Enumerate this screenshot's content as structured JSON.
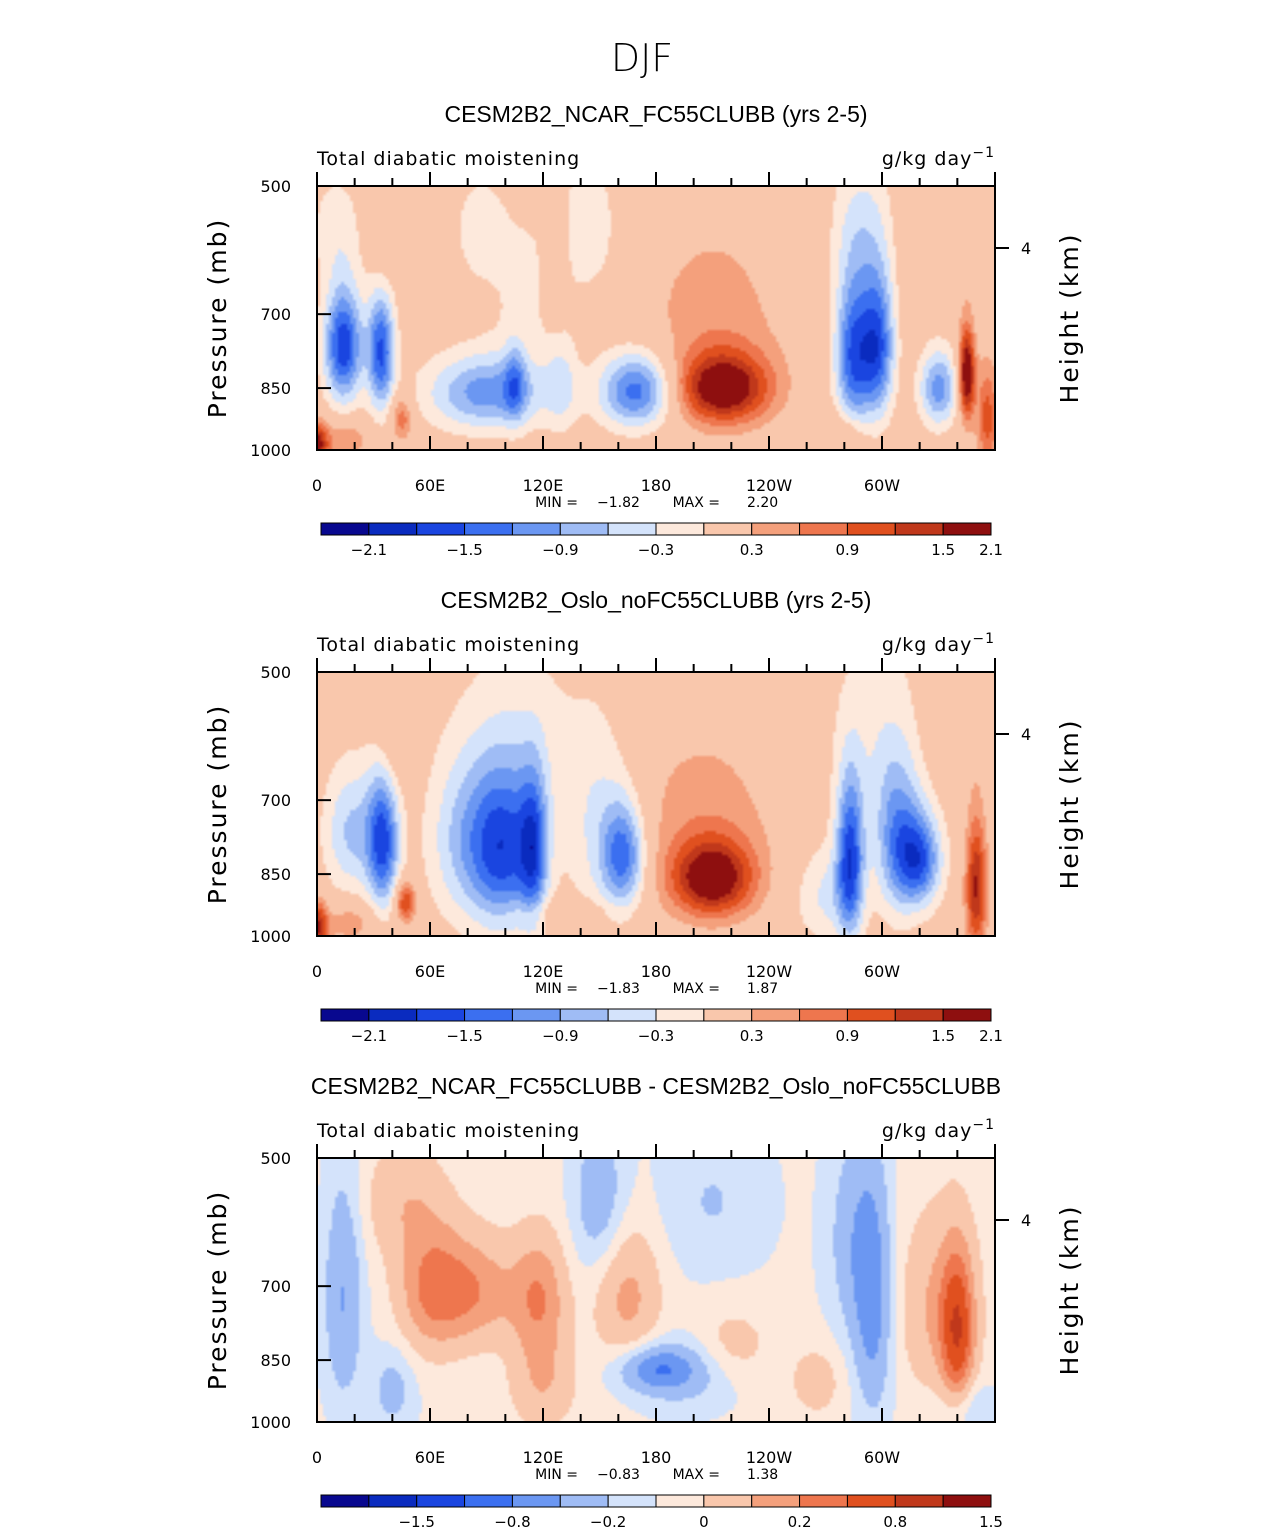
{
  "title": "DJF",
  "palette": [
    "#08088f",
    "#0a2bbf",
    "#1a45e0",
    "#3b6ff0",
    "#6b97f2",
    "#9fbcf5",
    "#d4e3fb",
    "#fde9dc",
    "#f9c7ac",
    "#f4a07c",
    "#ee764e",
    "#e0501f",
    "#c0381b",
    "#8e0f0f"
  ],
  "chart_data": [
    {
      "type": "heatmap",
      "title": "CESM2B2_NCAR_FC55CLUBB (yrs 2-5)",
      "variable_label": "Total diabatic moistening",
      "units_base": "g/kg day",
      "units_exp": "−1",
      "ylabel": "Pressure (mb)",
      "ylabel_right": "Height (km)",
      "yticks": [
        "500",
        "700",
        "850",
        "1000"
      ],
      "yticks_right": [
        "4"
      ],
      "xticks": [
        "0",
        "60E",
        "120E",
        "180",
        "120W",
        "60W"
      ],
      "xlim": [
        0,
        360
      ],
      "ylim": [
        1000,
        500
      ],
      "min_label": "MIN =",
      "min_value": "−1.82",
      "max_label": "MAX =",
      "max_value": "2.20",
      "colorbar_levels": [
        "−2.1",
        "−1.5",
        "−0.9",
        "−0.3",
        "0.3",
        "0.9",
        "1.5",
        "2.1"
      ],
      "features": [
        {
          "lon": 14,
          "p": 760,
          "amp": -2.0,
          "wlon": 7,
          "wp": 80
        },
        {
          "lon": 34,
          "p": 770,
          "amp": -1.8,
          "wlon": 5,
          "wp": 85
        },
        {
          "lon": 10,
          "p": 560,
          "amp": -0.4,
          "wlon": 10,
          "wp": 60
        },
        {
          "lon": 0,
          "p": 985,
          "amp": 1.7,
          "wlon": 4,
          "wp": 40
        },
        {
          "lon": 15,
          "p": 975,
          "amp": 0.7,
          "wlon": 8,
          "wp": 35
        },
        {
          "lon": 45,
          "p": 920,
          "amp": 0.9,
          "wlon": 4,
          "wp": 40
        },
        {
          "lon": 35,
          "p": 560,
          "amp": 0.4,
          "wlon": 5,
          "wp": 70
        },
        {
          "lon": 90,
          "p": 860,
          "amp": -1.3,
          "wlon": 22,
          "wp": 60
        },
        {
          "lon": 105,
          "p": 840,
          "amp": -0.8,
          "wlon": 4,
          "wp": 60
        },
        {
          "lon": 130,
          "p": 840,
          "amp": -0.5,
          "wlon": 6,
          "wp": 80
        },
        {
          "lon": 110,
          "p": 650,
          "amp": -0.3,
          "wlon": 15,
          "wp": 120
        },
        {
          "lon": 170,
          "p": 855,
          "amp": -1.7,
          "wlon": 14,
          "wp": 60
        },
        {
          "lon": 145,
          "p": 560,
          "amp": -0.45,
          "wlon": 12,
          "wp": 80
        },
        {
          "lon": 127,
          "p": 620,
          "amp": 0.45,
          "wlon": 4,
          "wp": 70
        },
        {
          "lon": 85,
          "p": 560,
          "amp": -0.35,
          "wlon": 10,
          "wp": 60
        },
        {
          "lon": 216,
          "p": 850,
          "amp": 1.8,
          "wlon": 17,
          "wp": 55
        },
        {
          "lon": 210,
          "p": 720,
          "amp": 0.5,
          "wlon": 30,
          "wp": 150
        },
        {
          "lon": 285,
          "p": 780,
          "amp": -1.8,
          "wlon": 7,
          "wp": 110
        },
        {
          "lon": 298,
          "p": 760,
          "amp": -1.7,
          "wlon": 6,
          "wp": 100
        },
        {
          "lon": 290,
          "p": 560,
          "amp": -0.6,
          "wlon": 12,
          "wp": 80
        },
        {
          "lon": 330,
          "p": 850,
          "amp": -1.3,
          "wlon": 7,
          "wp": 60
        },
        {
          "lon": 345,
          "p": 820,
          "amp": 2.1,
          "wlon": 3,
          "wp": 70
        },
        {
          "lon": 356,
          "p": 920,
          "amp": 1.1,
          "wlon": 4,
          "wp": 90
        },
        {
          "lon": 280,
          "p": 960,
          "amp": 0.5,
          "wlon": 8,
          "wp": 40
        },
        {
          "lon": 335,
          "p": 560,
          "amp": 0.3,
          "wlon": 20,
          "wp": 80
        }
      ]
    },
    {
      "type": "heatmap",
      "title": "CESM2B2_Oslo_noFC55CLUBB (yrs 2-5)",
      "variable_label": "Total diabatic moistening",
      "units_base": "g/kg day",
      "units_exp": "−1",
      "ylabel": "Pressure (mb)",
      "ylabel_right": "Height (km)",
      "yticks": [
        "500",
        "700",
        "850",
        "1000"
      ],
      "yticks_right": [
        "4"
      ],
      "xticks": [
        "0",
        "60E",
        "120E",
        "180",
        "120W",
        "60W"
      ],
      "xlim": [
        0,
        360
      ],
      "ylim": [
        1000,
        500
      ],
      "min_label": "MIN =",
      "min_value": "−1.83",
      "max_label": "MAX =",
      "max_value": "1.87",
      "colorbar_levels": [
        "−2.1",
        "−1.5",
        "−0.9",
        "−0.3",
        "0.3",
        "0.9",
        "1.5",
        "2.1"
      ],
      "features": [
        {
          "lon": 35,
          "p": 780,
          "amp": -1.8,
          "wlon": 6,
          "wp": 100
        },
        {
          "lon": 18,
          "p": 760,
          "amp": -0.9,
          "wlon": 10,
          "wp": 90
        },
        {
          "lon": 0,
          "p": 975,
          "amp": 1.6,
          "wlon": 4,
          "wp": 45
        },
        {
          "lon": 18,
          "p": 965,
          "amp": 0.6,
          "wlon": 9,
          "wp": 35
        },
        {
          "lon": 47,
          "p": 915,
          "amp": 1.3,
          "wlon": 4,
          "wp": 35
        },
        {
          "lon": 40,
          "p": 580,
          "amp": 0.45,
          "wlon": 6,
          "wp": 70
        },
        {
          "lon": 100,
          "p": 800,
          "amp": -1.7,
          "wlon": 13,
          "wp": 120
        },
        {
          "lon": 115,
          "p": 800,
          "amp": -1.3,
          "wlon": 5,
          "wp": 110
        },
        {
          "lon": 78,
          "p": 780,
          "amp": -0.8,
          "wlon": 14,
          "wp": 120
        },
        {
          "lon": 163,
          "p": 810,
          "amp": -1.5,
          "wlon": 8,
          "wp": 80
        },
        {
          "lon": 150,
          "p": 760,
          "amp": -0.6,
          "wlon": 12,
          "wp": 140
        },
        {
          "lon": 110,
          "p": 600,
          "amp": -0.35,
          "wlon": 25,
          "wp": 120
        },
        {
          "lon": 130,
          "p": 940,
          "amp": 0.3,
          "wlon": 20,
          "wp": 25
        },
        {
          "lon": 210,
          "p": 860,
          "amp": 1.8,
          "wlon": 15,
          "wp": 60
        },
        {
          "lon": 205,
          "p": 740,
          "amp": 0.5,
          "wlon": 30,
          "wp": 140
        },
        {
          "lon": 283,
          "p": 820,
          "amp": -1.8,
          "wlon": 5,
          "wp": 120
        },
        {
          "lon": 320,
          "p": 820,
          "amp": -1.6,
          "wlon": 8,
          "wp": 70
        },
        {
          "lon": 308,
          "p": 780,
          "amp": -1.1,
          "wlon": 8,
          "wp": 110
        },
        {
          "lon": 300,
          "p": 620,
          "amp": -0.45,
          "wlon": 20,
          "wp": 140
        },
        {
          "lon": 350,
          "p": 880,
          "amp": 1.6,
          "wlon": 4,
          "wp": 110
        },
        {
          "lon": 270,
          "p": 900,
          "amp": -0.6,
          "wlon": 12,
          "wp": 80
        },
        {
          "lon": 340,
          "p": 560,
          "amp": 0.35,
          "wlon": 15,
          "wp": 80
        }
      ]
    },
    {
      "type": "heatmap",
      "title": "CESM2B2_NCAR_FC55CLUBB - CESM2B2_Oslo_noFC55CLUBB",
      "variable_label": "Total diabatic moistening",
      "units_base": "g/kg day",
      "units_exp": "−1",
      "ylabel": "Pressure (mb)",
      "ylabel_right": "Height (km)",
      "yticks": [
        "500",
        "700",
        "850",
        "1000"
      ],
      "yticks_right": [
        "4"
      ],
      "xticks": [
        "0",
        "60E",
        "120E",
        "180",
        "120W",
        "60W"
      ],
      "xlim": [
        0,
        360
      ],
      "ylim": [
        1000,
        500
      ],
      "min_label": "MIN =",
      "min_value": "−0.83",
      "max_label": "MAX =",
      "max_value": "1.38",
      "colorbar_levels": [
        "−1.5",
        "−0.8",
        "−0.2",
        "0",
        "0.2",
        "0.8",
        "1.5"
      ],
      "features": [
        {
          "lon": 14,
          "p": 720,
          "amp": -0.55,
          "wlon": 7,
          "wp": 150
        },
        {
          "lon": 80,
          "p": 710,
          "amp": 0.75,
          "wlon": 18,
          "wp": 70
        },
        {
          "lon": 60,
          "p": 700,
          "amp": 0.55,
          "wlon": 12,
          "wp": 90
        },
        {
          "lon": 118,
          "p": 720,
          "amp": 0.7,
          "wlon": 10,
          "wp": 80
        },
        {
          "lon": 165,
          "p": 720,
          "amp": 0.55,
          "wlon": 12,
          "wp": 90
        },
        {
          "lon": 45,
          "p": 560,
          "amp": 0.35,
          "wlon": 15,
          "wp": 60
        },
        {
          "lon": 120,
          "p": 900,
          "amp": 0.45,
          "wlon": 12,
          "wp": 80
        },
        {
          "lon": 40,
          "p": 920,
          "amp": -0.35,
          "wlon": 8,
          "wp": 70
        },
        {
          "lon": 180,
          "p": 870,
          "amp": -0.65,
          "wlon": 14,
          "wp": 35
        },
        {
          "lon": 195,
          "p": 880,
          "amp": -0.35,
          "wlon": 20,
          "wp": 60
        },
        {
          "lon": 150,
          "p": 560,
          "amp": -0.45,
          "wlon": 10,
          "wp": 80
        },
        {
          "lon": 220,
          "p": 820,
          "amp": 0.3,
          "wlon": 15,
          "wp": 60
        },
        {
          "lon": 295,
          "p": 740,
          "amp": -0.65,
          "wlon": 7,
          "wp": 160
        },
        {
          "lon": 285,
          "p": 620,
          "amp": -0.4,
          "wlon": 10,
          "wp": 120
        },
        {
          "lon": 340,
          "p": 790,
          "amp": 1.2,
          "wlon": 6,
          "wp": 110
        },
        {
          "lon": 330,
          "p": 740,
          "amp": 0.5,
          "wlon": 14,
          "wp": 120
        },
        {
          "lon": 265,
          "p": 900,
          "amp": 0.3,
          "wlon": 10,
          "wp": 60
        },
        {
          "lon": 345,
          "p": 960,
          "amp": -0.3,
          "wlon": 10,
          "wp": 50
        },
        {
          "lon": 210,
          "p": 560,
          "amp": -0.25,
          "wlon": 20,
          "wp": 80
        }
      ]
    }
  ]
}
